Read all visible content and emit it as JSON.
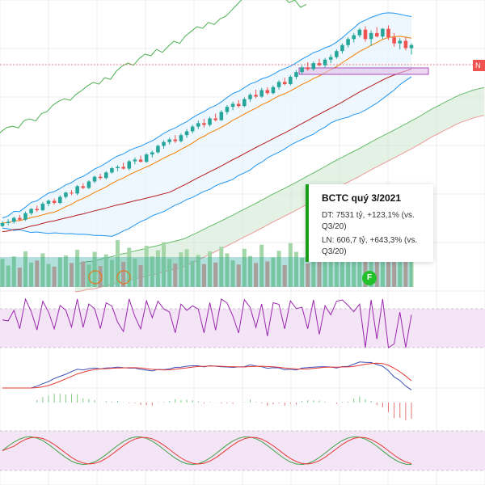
{
  "chart_data": {
    "type": "candlestick",
    "panes": [
      "price",
      "rsi",
      "macd",
      "stochastic"
    ],
    "candles": [
      [
        250,
        262,
        248,
        257
      ],
      [
        257,
        266,
        252,
        260
      ],
      [
        260,
        272,
        256,
        269
      ],
      [
        269,
        276,
        262,
        265
      ],
      [
        265,
        284,
        262,
        280
      ],
      [
        280,
        292,
        276,
        290
      ],
      [
        290,
        298,
        283,
        287
      ],
      [
        287,
        306,
        285,
        302
      ],
      [
        302,
        312,
        296,
        309
      ],
      [
        309,
        314,
        300,
        304
      ],
      [
        304,
        322,
        301,
        318
      ],
      [
        318,
        330,
        314,
        328
      ],
      [
        328,
        334,
        322,
        326
      ],
      [
        326,
        346,
        322,
        343
      ],
      [
        343,
        350,
        336,
        339
      ],
      [
        339,
        357,
        336,
        354
      ],
      [
        354,
        368,
        350,
        365
      ],
      [
        365,
        372,
        358,
        362
      ],
      [
        362,
        378,
        359,
        375
      ],
      [
        375,
        388,
        372,
        385
      ],
      [
        385,
        392,
        378,
        388
      ],
      [
        388,
        398,
        382,
        384
      ],
      [
        384,
        404,
        380,
        401
      ],
      [
        401,
        410,
        394,
        405
      ],
      [
        405,
        414,
        398,
        400
      ],
      [
        400,
        420,
        397,
        417
      ],
      [
        417,
        426,
        410,
        422
      ],
      [
        422,
        440,
        419,
        437
      ],
      [
        437,
        450,
        430,
        446
      ],
      [
        446,
        456,
        440,
        452
      ],
      [
        452,
        462,
        444,
        448
      ],
      [
        448,
        466,
        445,
        462
      ],
      [
        462,
        476,
        456,
        471
      ],
      [
        471,
        486,
        466,
        482
      ],
      [
        482,
        496,
        476,
        490
      ],
      [
        490,
        500,
        480,
        486
      ],
      [
        486,
        505,
        482,
        501
      ],
      [
        501,
        512,
        494,
        497
      ],
      [
        497,
        520,
        495,
        516
      ],
      [
        516,
        532,
        510,
        528
      ],
      [
        528,
        540,
        520,
        535
      ],
      [
        535,
        544,
        526,
        530
      ],
      [
        530,
        550,
        527,
        546
      ],
      [
        546,
        560,
        540,
        556
      ],
      [
        556,
        568,
        548,
        552
      ],
      [
        552,
        572,
        549,
        567
      ],
      [
        567,
        574,
        556,
        560
      ],
      [
        560,
        578,
        557,
        574
      ],
      [
        574,
        590,
        568,
        586
      ],
      [
        586,
        596,
        578,
        581
      ],
      [
        581,
        602,
        578,
        598
      ],
      [
        598,
        614,
        592,
        609
      ],
      [
        609,
        624,
        604,
        620
      ],
      [
        620,
        632,
        612,
        616
      ],
      [
        616,
        634,
        612,
        630
      ],
      [
        630,
        640,
        622,
        625
      ],
      [
        625,
        642,
        620,
        638
      ],
      [
        638,
        650,
        630,
        644
      ],
      [
        644,
        662,
        640,
        658
      ],
      [
        658,
        676,
        652,
        672
      ],
      [
        672,
        690,
        666,
        686
      ],
      [
        686,
        700,
        678,
        695
      ],
      [
        695,
        712,
        690,
        708
      ],
      [
        708,
        716,
        680,
        686
      ],
      [
        686,
        706,
        670,
        700
      ],
      [
        700,
        714,
        690,
        692
      ],
      [
        692,
        712,
        686,
        710
      ],
      [
        710,
        718,
        684,
        690
      ],
      [
        690,
        700,
        668,
        676
      ],
      [
        676,
        688,
        662,
        682
      ],
      [
        682,
        690,
        660,
        665
      ],
      [
        665,
        676,
        650,
        672
      ]
    ],
    "volume": [
      0.55,
      0.42,
      0.6,
      0.38,
      0.7,
      0.48,
      0.52,
      0.66,
      0.45,
      0.4,
      0.58,
      0.62,
      0.47,
      0.73,
      0.5,
      0.44,
      0.69,
      0.41,
      0.64,
      0.53,
      0.92,
      0.49,
      0.77,
      0.56,
      0.43,
      0.81,
      0.6,
      0.72,
      0.88,
      0.55,
      0.46,
      0.68,
      0.74,
      0.51,
      0.63,
      0.45,
      0.7,
      0.48,
      0.79,
      0.66,
      0.52,
      0.44,
      0.75,
      0.61,
      0.47,
      0.83,
      0.5,
      0.58,
      0.71,
      0.43,
      0.86,
      0.69,
      0.57,
      0.46,
      0.73,
      0.49,
      0.62,
      0.55,
      0.8,
      0.67,
      0.59,
      0.72,
      0.64,
      0.9,
      0.58,
      0.53,
      0.66,
      0.81,
      0.7,
      0.62,
      0.76,
      0.68
    ],
    "annotation_title": "BCTC quý 3/2021",
    "annotation_lines": [
      "DT: 7531 tỷ, +123,1% (vs. Q3/20)",
      "LN: 606,7 tỷ, +643,3% (vs. Q3/20)"
    ],
    "price_tag": "N",
    "event_marker": "F",
    "grid": true,
    "colors": {
      "up": "#26a69a",
      "down": "#ef5350",
      "bb_band": "#2196f3",
      "bb_fill": "#e3f2fd",
      "ma_orange": "#f57c00",
      "ma_darkred": "#b71c1c",
      "ichimoku_green": "#66bb6a",
      "ichimoku_red": "#ef9a9a",
      "lagging_green": "#4caf50",
      "rsi_line": "#9c27b0",
      "pane_fill": "#f3e5f5",
      "macd_line": "#3f51b5",
      "signal_line": "#e53935",
      "stoch_k": "#43a047",
      "stoch_d": "#e53935",
      "annotation_accent": "#1a9e1a",
      "event_marker_green": "#22c02a",
      "highlight_box": "#e1bee7"
    }
  }
}
